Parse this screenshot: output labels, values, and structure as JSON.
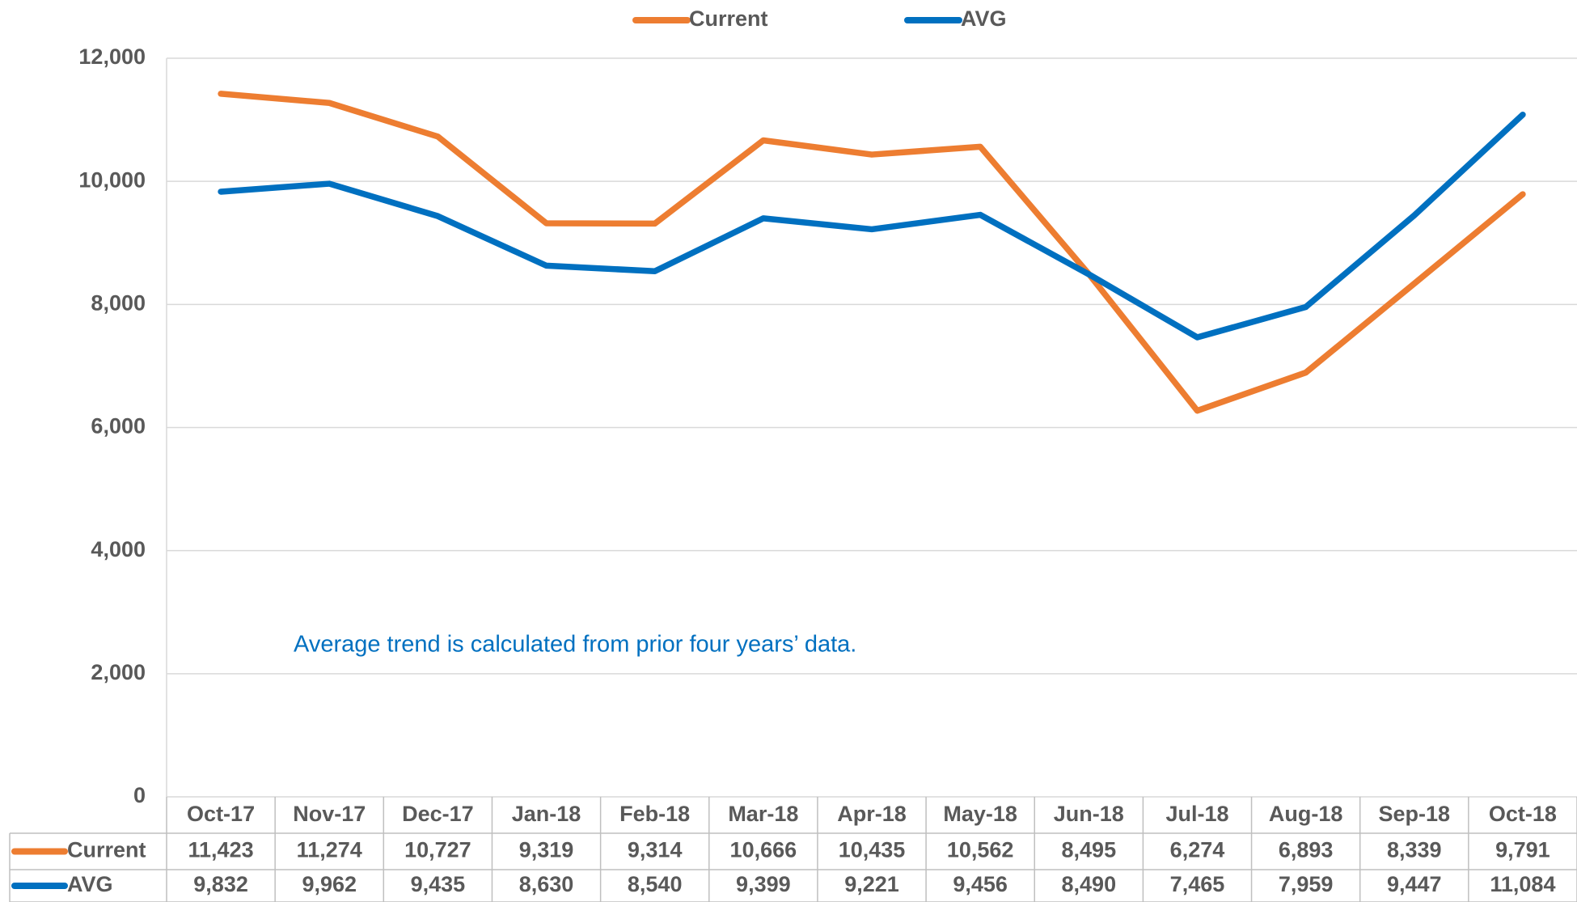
{
  "chart_data": {
    "type": "line",
    "annotation": "Average trend is calculated from prior four years’ data.",
    "categories": [
      "Oct-17",
      "Nov-17",
      "Dec-17",
      "Jan-18",
      "Feb-18",
      "Mar-18",
      "Apr-18",
      "May-18",
      "Jun-18",
      "Jul-18",
      "Aug-18",
      "Sep-18",
      "Oct-18"
    ],
    "series": [
      {
        "name": "Current",
        "color": "#ed7d31",
        "values": [
          11423,
          11274,
          10727,
          9319,
          9314,
          10666,
          10435,
          10562,
          8495,
          6274,
          6893,
          8339,
          9791
        ],
        "value_labels": [
          "11,423",
          "11,274",
          "10,727",
          "9,319",
          "9,314",
          "10,666",
          "10,435",
          "10,562",
          "8,495",
          "6,274",
          "6,893",
          "8,339",
          "9,791"
        ]
      },
      {
        "name": "AVG",
        "color": "#0070c0",
        "values": [
          9832,
          9962,
          9435,
          8630,
          8540,
          9399,
          9221,
          9456,
          8490,
          7465,
          7959,
          9447,
          11084
        ],
        "value_labels": [
          "9,832",
          "9,962",
          "9,435",
          "8,630",
          "8,540",
          "9,399",
          "9,221",
          "9,456",
          "8,490",
          "7,465",
          "7,959",
          "9,447",
          "11,084"
        ]
      }
    ],
    "ylim": [
      0,
      12000
    ],
    "yticks": [
      0,
      {
        "value": 2000,
        "label": "2,000"
      },
      {
        "value": 4000,
        "label": "4,000"
      },
      {
        "value": 6000,
        "label": "6,000"
      },
      {
        "value": 8000,
        "label": "8,000"
      },
      {
        "value": 10000,
        "label": "10,000"
      },
      {
        "value": 12000,
        "label": "12,000"
      }
    ],
    "grid": true,
    "legend": "top",
    "data_table": true
  }
}
